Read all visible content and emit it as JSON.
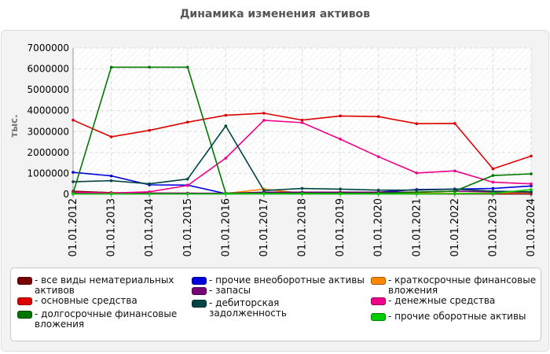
{
  "page": {
    "title": "Динамика изменения активов"
  },
  "chart_data": {
    "type": "line",
    "title": "Динамика изменения активов",
    "ylabel": "тыс.",
    "ylim": [
      0,
      7000000
    ],
    "yticks": [
      "0",
      "1000000",
      "2000000",
      "3000000",
      "4000000",
      "5000000",
      "6000000",
      "7000000"
    ],
    "categories": [
      "01.01.2012",
      "01.01.2013",
      "01.01.2014",
      "01.01.2015",
      "01.01.2016",
      "01.01.2017",
      "01.01.2018",
      "01.01.2019",
      "01.01.2020",
      "01.01.2021",
      "01.01.2022",
      "01.01.2023",
      "01.01.2024"
    ],
    "grid": true,
    "legend_position": "bottom",
    "series": [
      {
        "name": "- все виды нематериальных активов",
        "color": "#7a0000",
        "values": [
          150000,
          80000,
          60000,
          50000,
          40000,
          40000,
          30000,
          30000,
          30000,
          30000,
          20000,
          20000,
          20000
        ]
      },
      {
        "name": "- прочие внеоборотные активы",
        "color": "#0000dd",
        "values": [
          1050000,
          880000,
          450000,
          440000,
          30000,
          50000,
          80000,
          60000,
          100000,
          230000,
          250000,
          280000,
          400000
        ]
      },
      {
        "name": "- краткосрочные финансовые вложения",
        "color": "#ff8800",
        "values": [
          50000,
          50000,
          50000,
          50000,
          40000,
          250000,
          50000,
          50000,
          50000,
          50000,
          50000,
          60000,
          80000
        ]
      },
      {
        "name": "- основные средства",
        "color": "#dd0000",
        "values": [
          3550000,
          2750000,
          3060000,
          3450000,
          3780000,
          3880000,
          3550000,
          3750000,
          3720000,
          3380000,
          3390000,
          1220000,
          1830000
        ]
      },
      {
        "name": "- запасы",
        "color": "#770077",
        "values": [
          50000,
          50000,
          50000,
          50000,
          50000,
          100000,
          100000,
          100000,
          100000,
          100000,
          150000,
          120000,
          100000
        ]
      },
      {
        "name": "- денежные средства",
        "color": "#ee0088",
        "values": [
          100000,
          60000,
          120000,
          420000,
          1730000,
          3540000,
          3430000,
          2640000,
          1800000,
          1020000,
          1120000,
          580000,
          500000
        ]
      },
      {
        "name": "- долгосрочные финансовые вложения",
        "color": "#007700",
        "values": [
          50000,
          6080000,
          6080000,
          6080000,
          50000,
          50000,
          50000,
          50000,
          50000,
          100000,
          150000,
          900000,
          980000
        ]
      },
      {
        "name": "- дебиторская задолженность",
        "color": "#004444",
        "values": [
          600000,
          650000,
          500000,
          730000,
          3270000,
          180000,
          280000,
          250000,
          200000,
          200000,
          250000,
          150000,
          120000
        ]
      },
      {
        "name": "- прочие оборотные активы",
        "color": "#00cc00",
        "values": [
          20000,
          20000,
          20000,
          20000,
          20000,
          20000,
          20000,
          20000,
          20000,
          20000,
          30000,
          40000,
          230000
        ]
      }
    ]
  }
}
